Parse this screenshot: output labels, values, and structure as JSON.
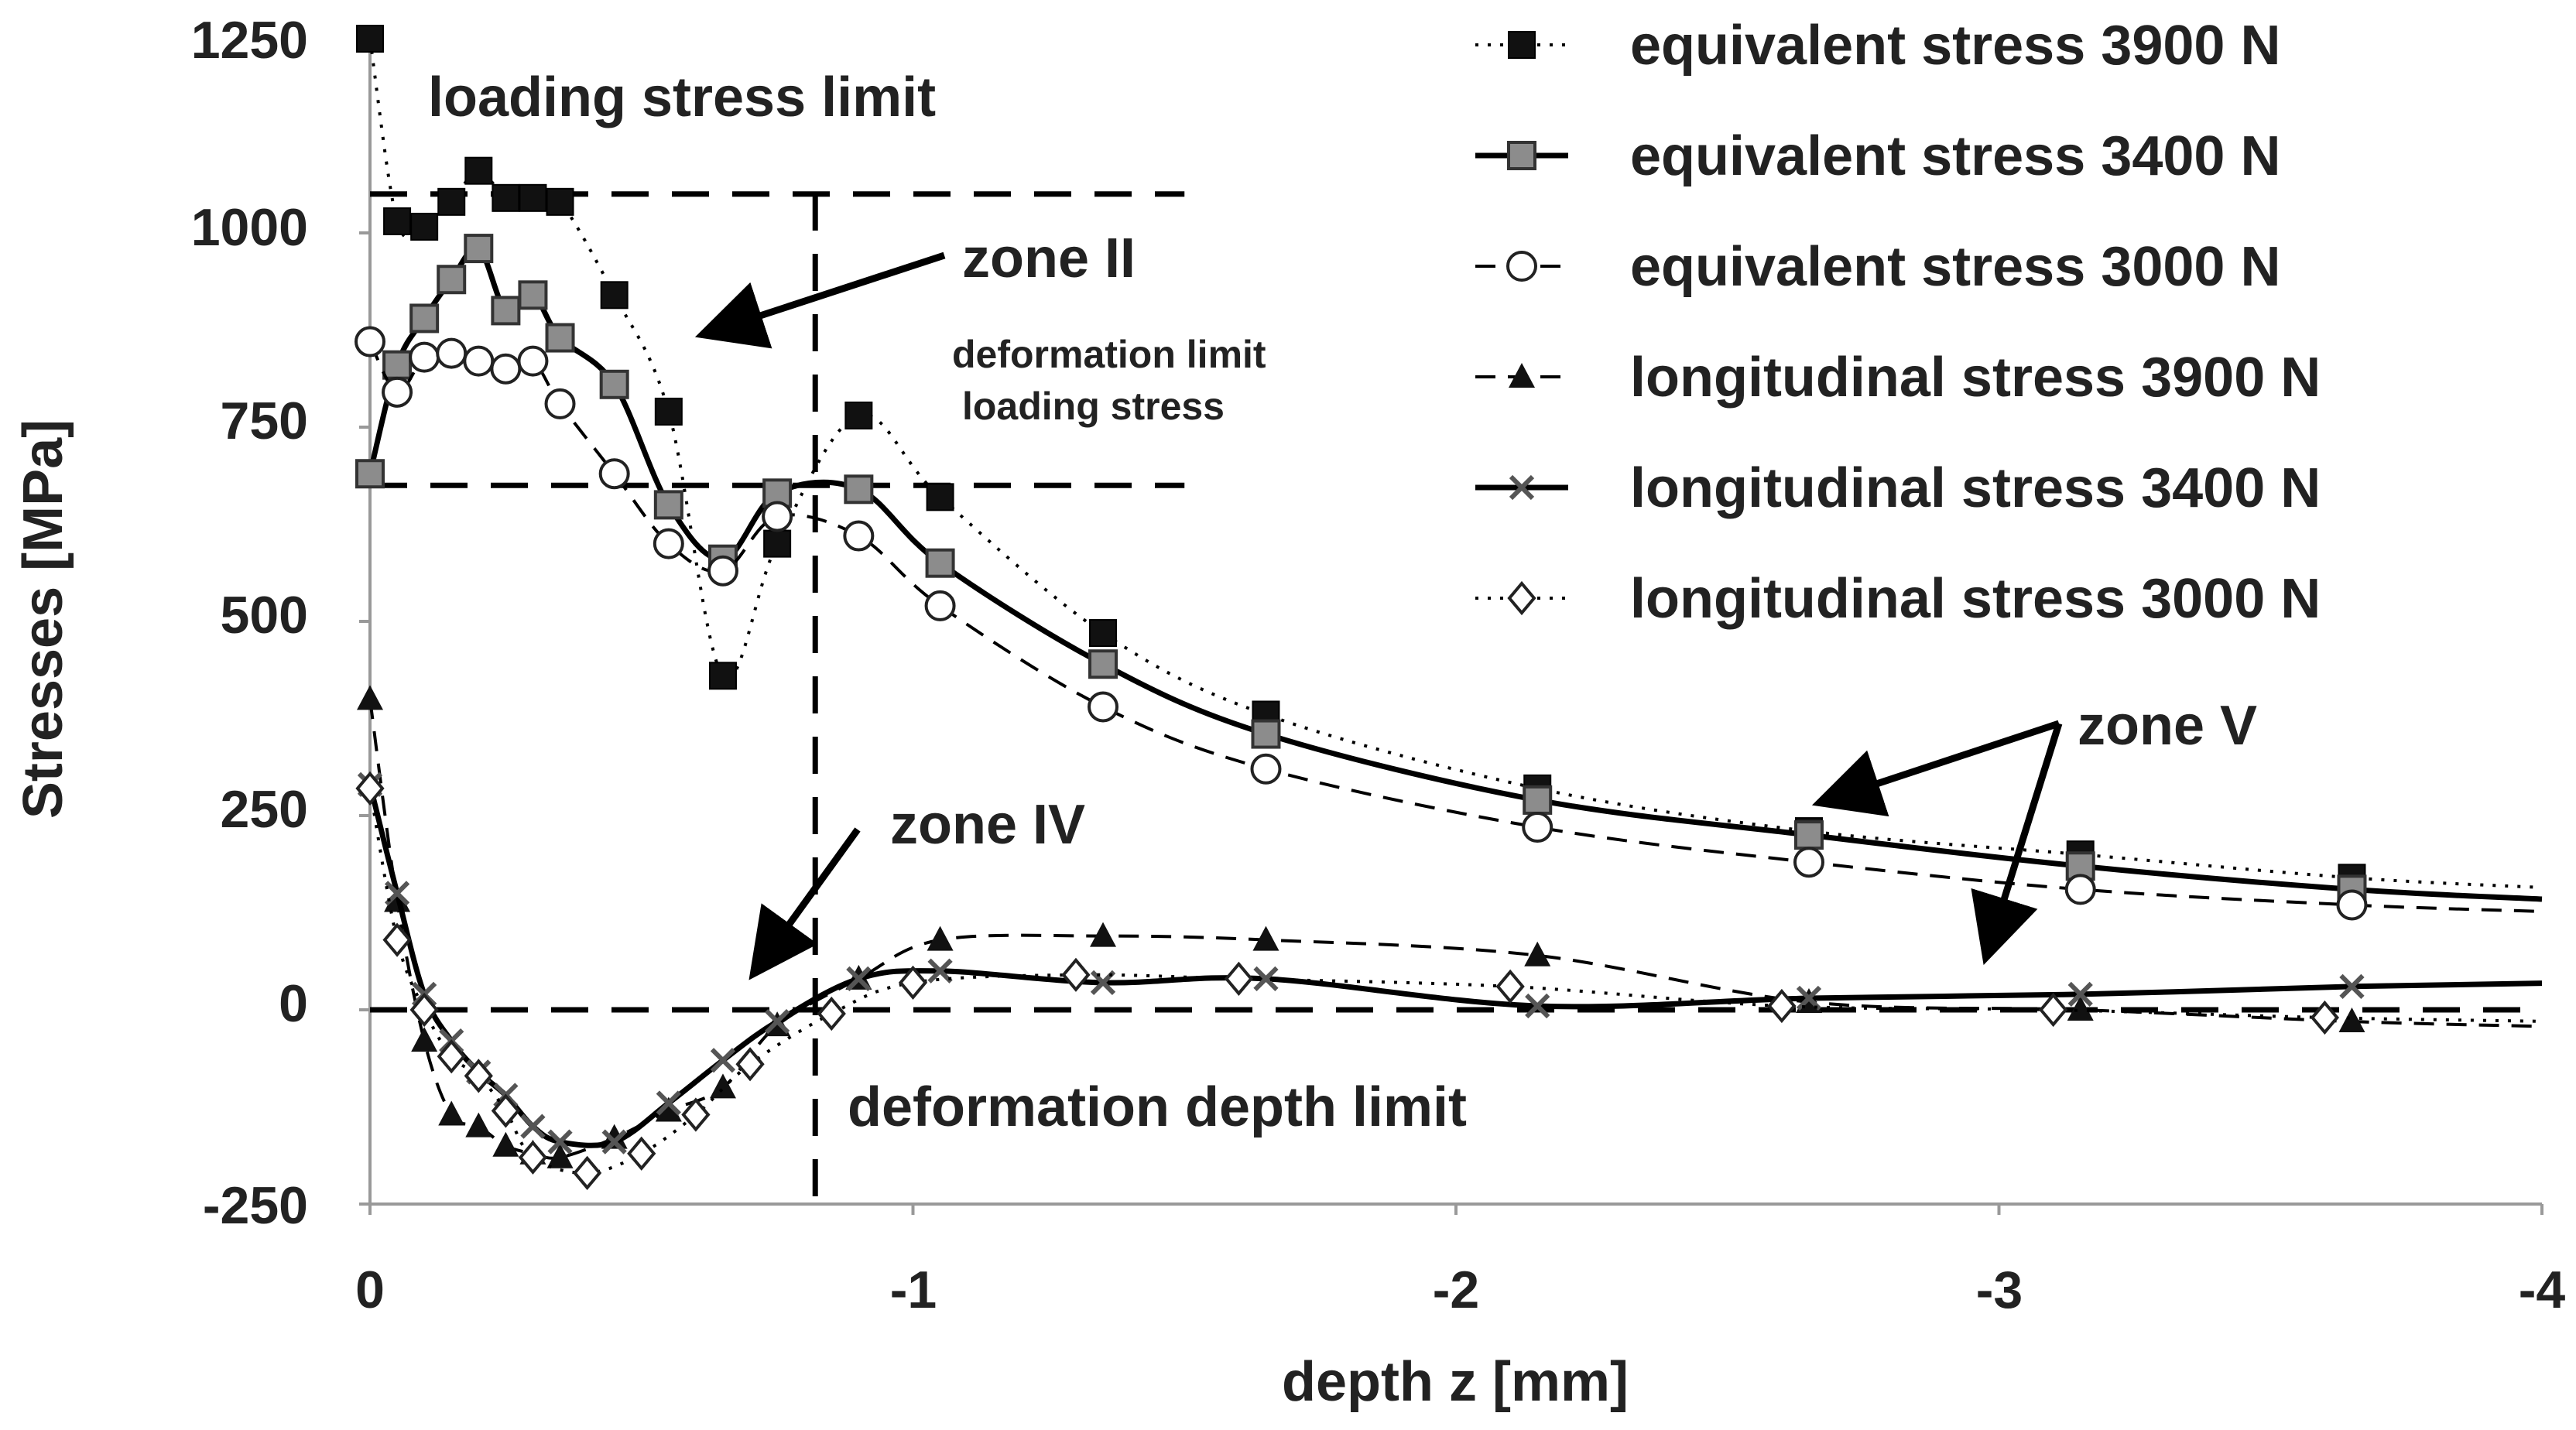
{
  "chart_data": {
    "type": "line",
    "title": "",
    "xlabel": "depth z [mm]",
    "ylabel": "Stresses [MPa]",
    "xlim": [
      0,
      -4
    ],
    "ylim": [
      -250,
      1250
    ],
    "x_ticks": [
      0,
      -1,
      -2,
      -3,
      -4
    ],
    "y_ticks": [
      -250,
      0,
      250,
      500,
      750,
      1000,
      1250
    ],
    "grid": false,
    "legend_position": "top-right",
    "series": [
      {
        "name": "equivalent stress 3900 N",
        "line": "dotted",
        "marker": "filled-square",
        "x": [
          0,
          -0.05,
          -0.1,
          -0.15,
          -0.2,
          -0.25,
          -0.3,
          -0.35,
          -0.45,
          -0.55,
          -0.65,
          -0.75,
          -0.9,
          -1.05,
          -1.35,
          -1.65,
          -2.15,
          -2.65,
          -3.15,
          -3.65
        ],
        "y": [
          1250,
          1015,
          1008,
          1040,
          1080,
          1045,
          1045,
          1040,
          920,
          770,
          430,
          600,
          765,
          660,
          485,
          380,
          285,
          230,
          200,
          170
        ]
      },
      {
        "name": "equivalent stress 3400 N",
        "line": "solid",
        "marker": "grey-square",
        "x": [
          0,
          -0.05,
          -0.1,
          -0.15,
          -0.2,
          -0.25,
          -0.3,
          -0.35,
          -0.45,
          -0.55,
          -0.65,
          -0.75,
          -0.9,
          -1.05,
          -1.35,
          -1.65,
          -2.15,
          -2.65,
          -3.15,
          -3.65
        ],
        "y": [
          690,
          830,
          890,
          940,
          980,
          900,
          920,
          865,
          805,
          650,
          580,
          665,
          670,
          575,
          445,
          355,
          270,
          225,
          185,
          155
        ]
      },
      {
        "name": "equivalent stress 3000 N",
        "line": "dashed",
        "marker": "open-circle",
        "x": [
          0,
          -0.05,
          -0.1,
          -0.15,
          -0.2,
          -0.25,
          -0.3,
          -0.35,
          -0.45,
          -0.55,
          -0.65,
          -0.75,
          -0.9,
          -1.05,
          -1.35,
          -1.65,
          -2.15,
          -2.65,
          -3.15,
          -3.65
        ],
        "y": [
          860,
          795,
          840,
          845,
          835,
          825,
          835,
          780,
          690,
          600,
          565,
          635,
          610,
          520,
          390,
          310,
          235,
          190,
          155,
          135
        ]
      },
      {
        "name": "longitudinal stress 3900 N",
        "line": "dashed",
        "marker": "filled-triangle",
        "x": [
          0,
          -0.05,
          -0.1,
          -0.15,
          -0.2,
          -0.25,
          -0.3,
          -0.35,
          -0.45,
          -0.55,
          -0.65,
          -0.75,
          -0.9,
          -1.05,
          -1.35,
          -1.65,
          -2.15,
          -2.65,
          -3.15,
          -3.65
        ],
        "y": [
          400,
          140,
          -40,
          -135,
          -150,
          -175,
          -185,
          -190,
          -165,
          -130,
          -100,
          -20,
          40,
          90,
          95,
          90,
          70,
          10,
          0,
          -15
        ]
      },
      {
        "name": "longitudinal stress 3400 N",
        "line": "solid",
        "marker": "x-cross",
        "x": [
          0,
          -0.05,
          -0.1,
          -0.15,
          -0.2,
          -0.25,
          -0.3,
          -0.35,
          -0.45,
          -0.55,
          -0.65,
          -0.75,
          -0.9,
          -1.05,
          -1.35,
          -1.65,
          -2.15,
          -2.65,
          -3.15,
          -3.65
        ],
        "y": [
          290,
          150,
          20,
          -40,
          -80,
          -110,
          -150,
          -170,
          -170,
          -120,
          -65,
          -15,
          40,
          50,
          35,
          40,
          5,
          15,
          20,
          30
        ]
      },
      {
        "name": "longitudinal stress 3000 N",
        "line": "dotted",
        "marker": "open-diamond",
        "x": [
          0,
          -0.05,
          -0.1,
          -0.15,
          -0.2,
          -0.25,
          -0.3,
          -0.4,
          -0.5,
          -0.6,
          -0.7,
          -0.85,
          -1.0,
          -1.3,
          -1.6,
          -2.1,
          -2.6,
          -3.1,
          -3.6
        ],
        "y": [
          285,
          90,
          0,
          -60,
          -85,
          -130,
          -190,
          -210,
          -185,
          -135,
          -70,
          -5,
          35,
          45,
          40,
          30,
          5,
          0,
          -10
        ]
      }
    ],
    "reference_lines": [
      {
        "kind": "horizontal",
        "y": 1050,
        "x_from": 0,
        "x_to": -1.5
      },
      {
        "kind": "horizontal",
        "y": 675,
        "x_from": 0,
        "x_to": -1.5
      },
      {
        "kind": "horizontal",
        "y": 0,
        "x_from": 0,
        "x_to": -4
      },
      {
        "kind": "vertical",
        "x": -0.82
      }
    ],
    "annotations": [
      {
        "id": "loading_stress_limit",
        "text": "loading stress limit"
      },
      {
        "id": "zone_II",
        "text": "zone II"
      },
      {
        "id": "deformation_limit_1",
        "text": "deformation limit"
      },
      {
        "id": "deformation_limit_2",
        "text": "loading stress"
      },
      {
        "id": "zone_IV",
        "text": "zone IV"
      },
      {
        "id": "deformation_depth_limit",
        "text": "deformation depth limit"
      },
      {
        "id": "zone_V",
        "text": "zone V"
      }
    ]
  }
}
